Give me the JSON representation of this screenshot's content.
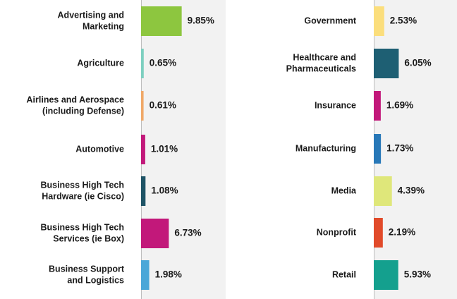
{
  "chart_data": [
    {
      "type": "bar",
      "orientation": "horizontal",
      "title": "",
      "xlabel": "",
      "ylabel": "",
      "grid": false,
      "value_unit": "%",
      "categories": [
        [
          "Advertising and",
          "Marketing"
        ],
        [
          "Agriculture"
        ],
        [
          "Airlines and Aerospace",
          "(including Defense)"
        ],
        [
          "Automotive"
        ],
        [
          "Business High Tech",
          "Hardware (ie Cisco)"
        ],
        [
          "Business High Tech",
          "Services (ie Box)"
        ],
        [
          "Business Support",
          "and Logistics"
        ]
      ],
      "values": [
        9.85,
        0.65,
        0.61,
        1.01,
        1.08,
        6.73,
        1.98
      ],
      "value_labels": [
        "9.85%",
        "0.65%",
        "0.61%",
        "1.01%",
        "1.08%",
        "6.73%",
        "1.98%"
      ],
      "colors": [
        "#8dc63f",
        "#7ecfc0",
        "#f0a868",
        "#c2187a",
        "#1f5466",
        "#c2187a",
        "#4aa7d8"
      ]
    },
    {
      "type": "bar",
      "orientation": "horizontal",
      "title": "",
      "xlabel": "",
      "ylabel": "",
      "grid": false,
      "value_unit": "%",
      "categories": [
        [
          "Government"
        ],
        [
          "Healthcare and",
          "Pharmaceuticals"
        ],
        [
          "Insurance"
        ],
        [
          "Manufacturing"
        ],
        [
          "Media"
        ],
        [
          "Nonprofit"
        ],
        [
          "Retail"
        ]
      ],
      "values": [
        2.53,
        6.05,
        1.69,
        1.73,
        4.39,
        2.19,
        5.93
      ],
      "value_labels": [
        "2.53%",
        "6.05%",
        "1.69%",
        "1.73%",
        "4.39%",
        "2.19%",
        "5.93%"
      ],
      "colors": [
        "#fbde7c",
        "#1e5f73",
        "#c2187a",
        "#2878b8",
        "#dfe77a",
        "#e14a2a",
        "#14a08e"
      ]
    }
  ],
  "colors": {
    "panel_background": "#f2f2f2",
    "axis_line": "#bdbdbd",
    "text": "#1a1a1a"
  }
}
